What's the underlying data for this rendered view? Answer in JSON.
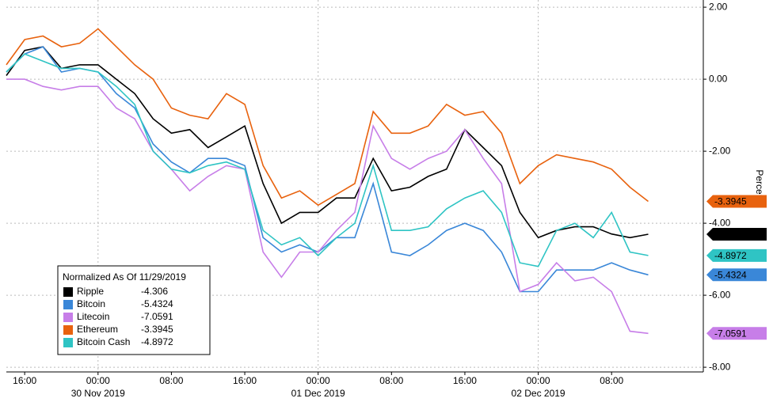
{
  "chart_data": {
    "type": "line",
    "y_label": "Percent",
    "legend_title": "Normalized As Of 11/29/2019",
    "x": [
      "2019-11-29T14:00",
      "2019-11-29T16:00",
      "2019-11-29T18:00",
      "2019-11-29T20:00",
      "2019-11-29T22:00",
      "2019-11-30T00:00",
      "2019-11-30T02:00",
      "2019-11-30T04:00",
      "2019-11-30T06:00",
      "2019-11-30T08:00",
      "2019-11-30T10:00",
      "2019-11-30T12:00",
      "2019-11-30T14:00",
      "2019-11-30T16:00",
      "2019-11-30T18:00",
      "2019-11-30T20:00",
      "2019-11-30T22:00",
      "2019-12-01T00:00",
      "2019-12-01T02:00",
      "2019-12-01T04:00",
      "2019-12-01T06:00",
      "2019-12-01T08:00",
      "2019-12-01T10:00",
      "2019-12-01T12:00",
      "2019-12-01T14:00",
      "2019-12-01T16:00",
      "2019-12-01T18:00",
      "2019-12-01T20:00",
      "2019-12-01T22:00",
      "2019-12-02T00:00",
      "2019-12-02T02:00",
      "2019-12-02T04:00",
      "2019-12-02T06:00",
      "2019-12-02T08:00",
      "2019-12-02T10:00",
      "2019-12-02T12:00"
    ],
    "series": [
      {
        "name": "Ripple",
        "color": "#000000",
        "values": [
          0.1,
          0.8,
          0.9,
          0.3,
          0.4,
          0.4,
          0,
          -0.4,
          -1.1,
          -1.5,
          -1.4,
          -1.9,
          -1.6,
          -1.3,
          -2.9,
          -4.0,
          -3.7,
          -3.7,
          -3.3,
          -3.3,
          -2.2,
          -3.1,
          -3.0,
          -2.7,
          -2.5,
          -1.4,
          -1.9,
          -2.4,
          -3.7,
          -4.4,
          -4.2,
          -4.1,
          -4.1,
          -4.3,
          -4.4,
          -4.306
        ]
      },
      {
        "name": "Bitcoin",
        "color": "#3a87d8",
        "values": [
          0.2,
          0.7,
          0.9,
          0.2,
          0.3,
          0.2,
          -0.4,
          -0.8,
          -1.8,
          -2.3,
          -2.6,
          -2.2,
          -2.2,
          -2.4,
          -4.4,
          -4.8,
          -4.6,
          -4.8,
          -4.4,
          -4.4,
          -2.9,
          -4.8,
          -4.9,
          -4.6,
          -4.2,
          -4.0,
          -4.2,
          -4.8,
          -5.9,
          -5.9,
          -5.3,
          -5.3,
          -5.3,
          -5.1,
          -5.3,
          -5.4324
        ]
      },
      {
        "name": "Litecoin",
        "color": "#c77ee8",
        "values": [
          0,
          0,
          -0.2,
          -0.3,
          -0.2,
          -0.2,
          -0.8,
          -1.1,
          -2.0,
          -2.5,
          -3.1,
          -2.7,
          -2.4,
          -2.5,
          -4.8,
          -5.5,
          -4.8,
          -4.8,
          -4.2,
          -3.7,
          -1.3,
          -2.2,
          -2.5,
          -2.2,
          -2.0,
          -1.4,
          -2.2,
          -2.9,
          -5.9,
          -5.7,
          -5.1,
          -5.6,
          -5.5,
          -5.9,
          -7.0,
          -7.0591
        ]
      },
      {
        "name": "Ethereum",
        "color": "#e8620e",
        "values": [
          0.4,
          1.1,
          1.2,
          0.9,
          1.0,
          1.4,
          0.9,
          0.4,
          0,
          -0.8,
          -1.0,
          -1.1,
          -0.4,
          -0.7,
          -2.4,
          -3.3,
          -3.1,
          -3.5,
          -3.2,
          -2.9,
          -0.9,
          -1.5,
          -1.5,
          -1.3,
          -0.7,
          -1.0,
          -0.9,
          -1.5,
          -2.9,
          -2.4,
          -2.1,
          -2.2,
          -2.3,
          -2.5,
          -3.0,
          -3.3945
        ]
      },
      {
        "name": "Bitcoin Cash",
        "color": "#2fc4c4",
        "values": [
          0.2,
          0.7,
          0.5,
          0.3,
          0.3,
          0.2,
          -0.2,
          -0.7,
          -2.0,
          -2.5,
          -2.6,
          -2.4,
          -2.3,
          -2.5,
          -4.2,
          -4.6,
          -4.4,
          -4.9,
          -4.4,
          -4.0,
          -2.4,
          -4.2,
          -4.2,
          -4.1,
          -3.6,
          -3.3,
          -3.1,
          -3.7,
          -5.1,
          -5.2,
          -4.2,
          -4.0,
          -4.4,
          -3.7,
          -4.8,
          -4.8972
        ]
      }
    ],
    "xlim": [
      "2019-11-29T14:00",
      "2019-12-02T18:00"
    ],
    "xticks": [
      {
        "value": "2019-11-29T16:00",
        "label": "16:00"
      },
      {
        "value": "2019-11-30T00:00",
        "label": "00:00"
      },
      {
        "value": "2019-11-30T08:00",
        "label": "08:00"
      },
      {
        "value": "2019-11-30T16:00",
        "label": "16:00"
      },
      {
        "value": "2019-12-01T00:00",
        "label": "00:00"
      },
      {
        "value": "2019-12-01T08:00",
        "label": "08:00"
      },
      {
        "value": "2019-12-01T16:00",
        "label": "16:00"
      },
      {
        "value": "2019-12-02T00:00",
        "label": "00:00"
      },
      {
        "value": "2019-12-02T08:00",
        "label": "08:00"
      }
    ],
    "x_date_labels": [
      {
        "value": "2019-11-30T00:00",
        "label": "30 Nov 2019"
      },
      {
        "value": "2019-12-01T00:00",
        "label": "01 Dec 2019"
      },
      {
        "value": "2019-12-02T00:00",
        "label": "02 Dec 2019"
      }
    ],
    "ylim": [
      -8.13,
      2.2
    ],
    "yticks": [
      {
        "value": 2,
        "label": "2.00"
      },
      {
        "value": 0,
        "label": "0.00"
      },
      {
        "value": -2,
        "label": "-2.00"
      },
      {
        "value": -4,
        "label": "-4.00"
      },
      {
        "value": -6,
        "label": "-6.00"
      },
      {
        "value": -8,
        "label": "-8.00"
      }
    ],
    "grid": true
  }
}
